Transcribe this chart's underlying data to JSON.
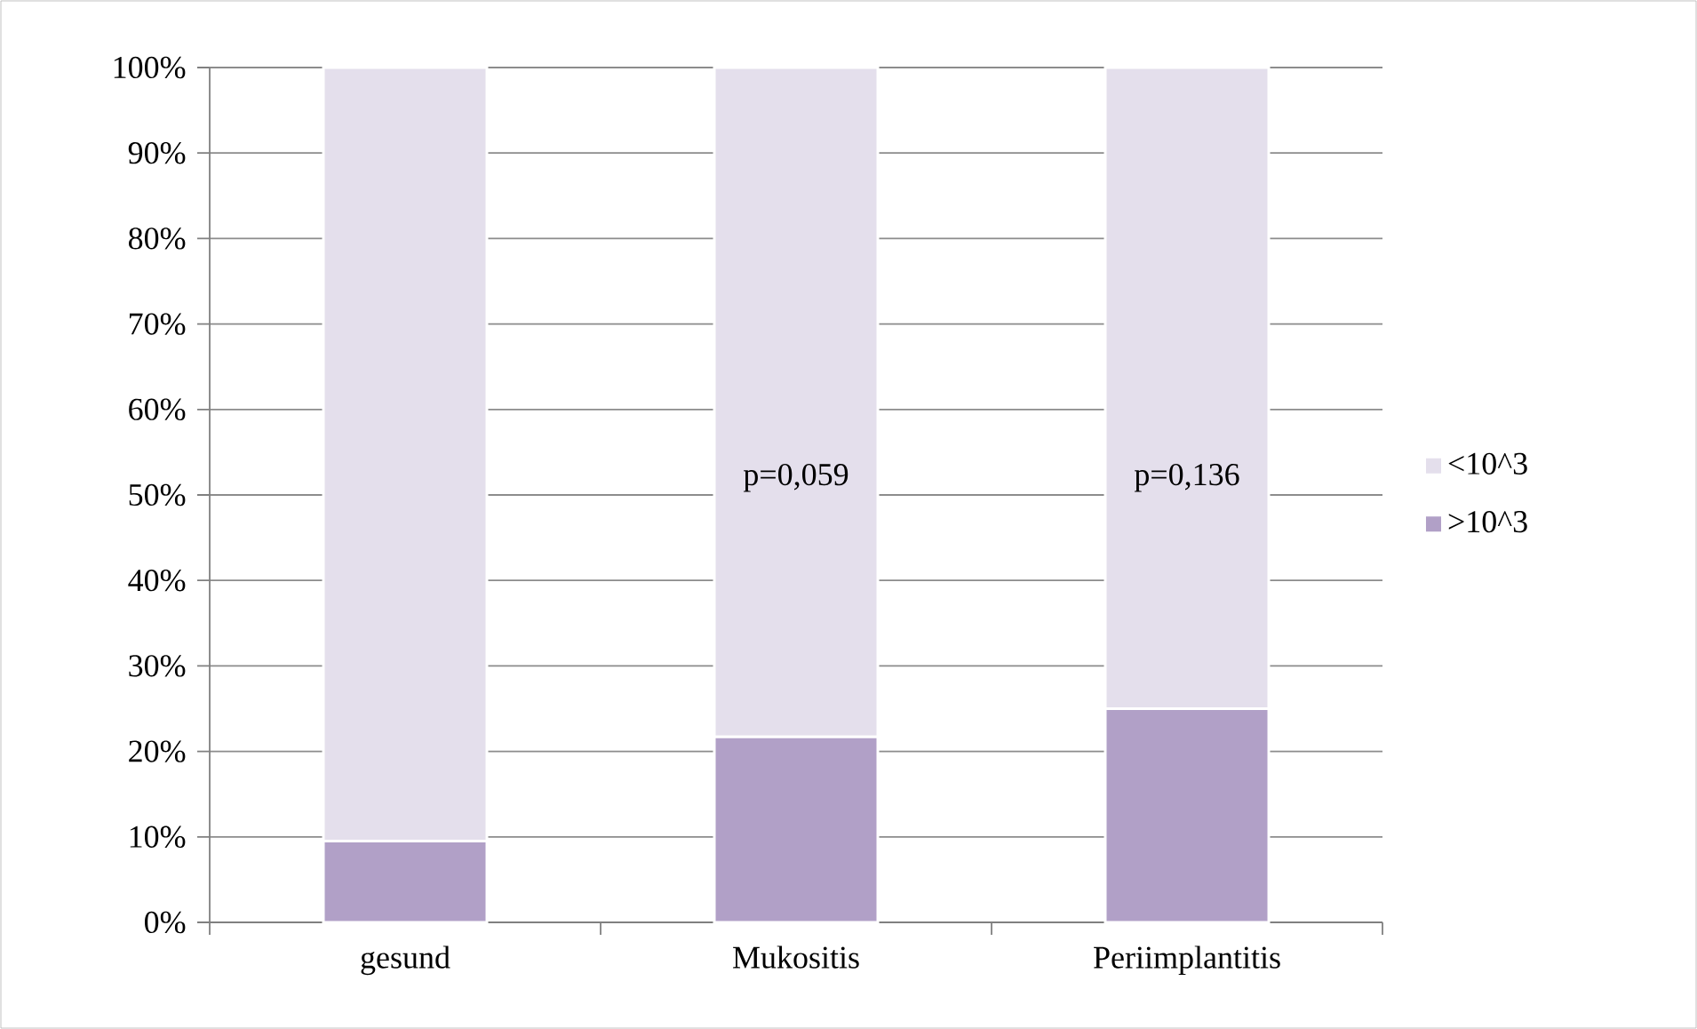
{
  "chart_data": {
    "type": "bar",
    "stacked": true,
    "categories": [
      "gesund",
      "Mukositis",
      "Periimplantitis"
    ],
    "series": [
      {
        "name": ">10^3",
        "color": "#b1a0c7",
        "values": [
          9.5,
          21.7,
          25
        ]
      },
      {
        "name": "<10^3",
        "color": "#e4dfec",
        "values": [
          90.5,
          78.3,
          75
        ]
      }
    ],
    "ylim": [
      0,
      100
    ],
    "yticks": [
      {
        "value": 0,
        "label": "0%"
      },
      {
        "value": 10,
        "label": "10%"
      },
      {
        "value": 20,
        "label": "20%"
      },
      {
        "value": 30,
        "label": "30%"
      },
      {
        "value": 40,
        "label": "40%"
      },
      {
        "value": 50,
        "label": "50%"
      },
      {
        "value": 60,
        "label": "60%"
      },
      {
        "value": 70,
        "label": "70%"
      },
      {
        "value": 80,
        "label": "80%"
      },
      {
        "value": 90,
        "label": "90%"
      },
      {
        "value": 100,
        "label": "100%"
      }
    ],
    "grid": "y",
    "legend": "right",
    "annotations": [
      "p=0,059",
      "p=0,136"
    ]
  }
}
